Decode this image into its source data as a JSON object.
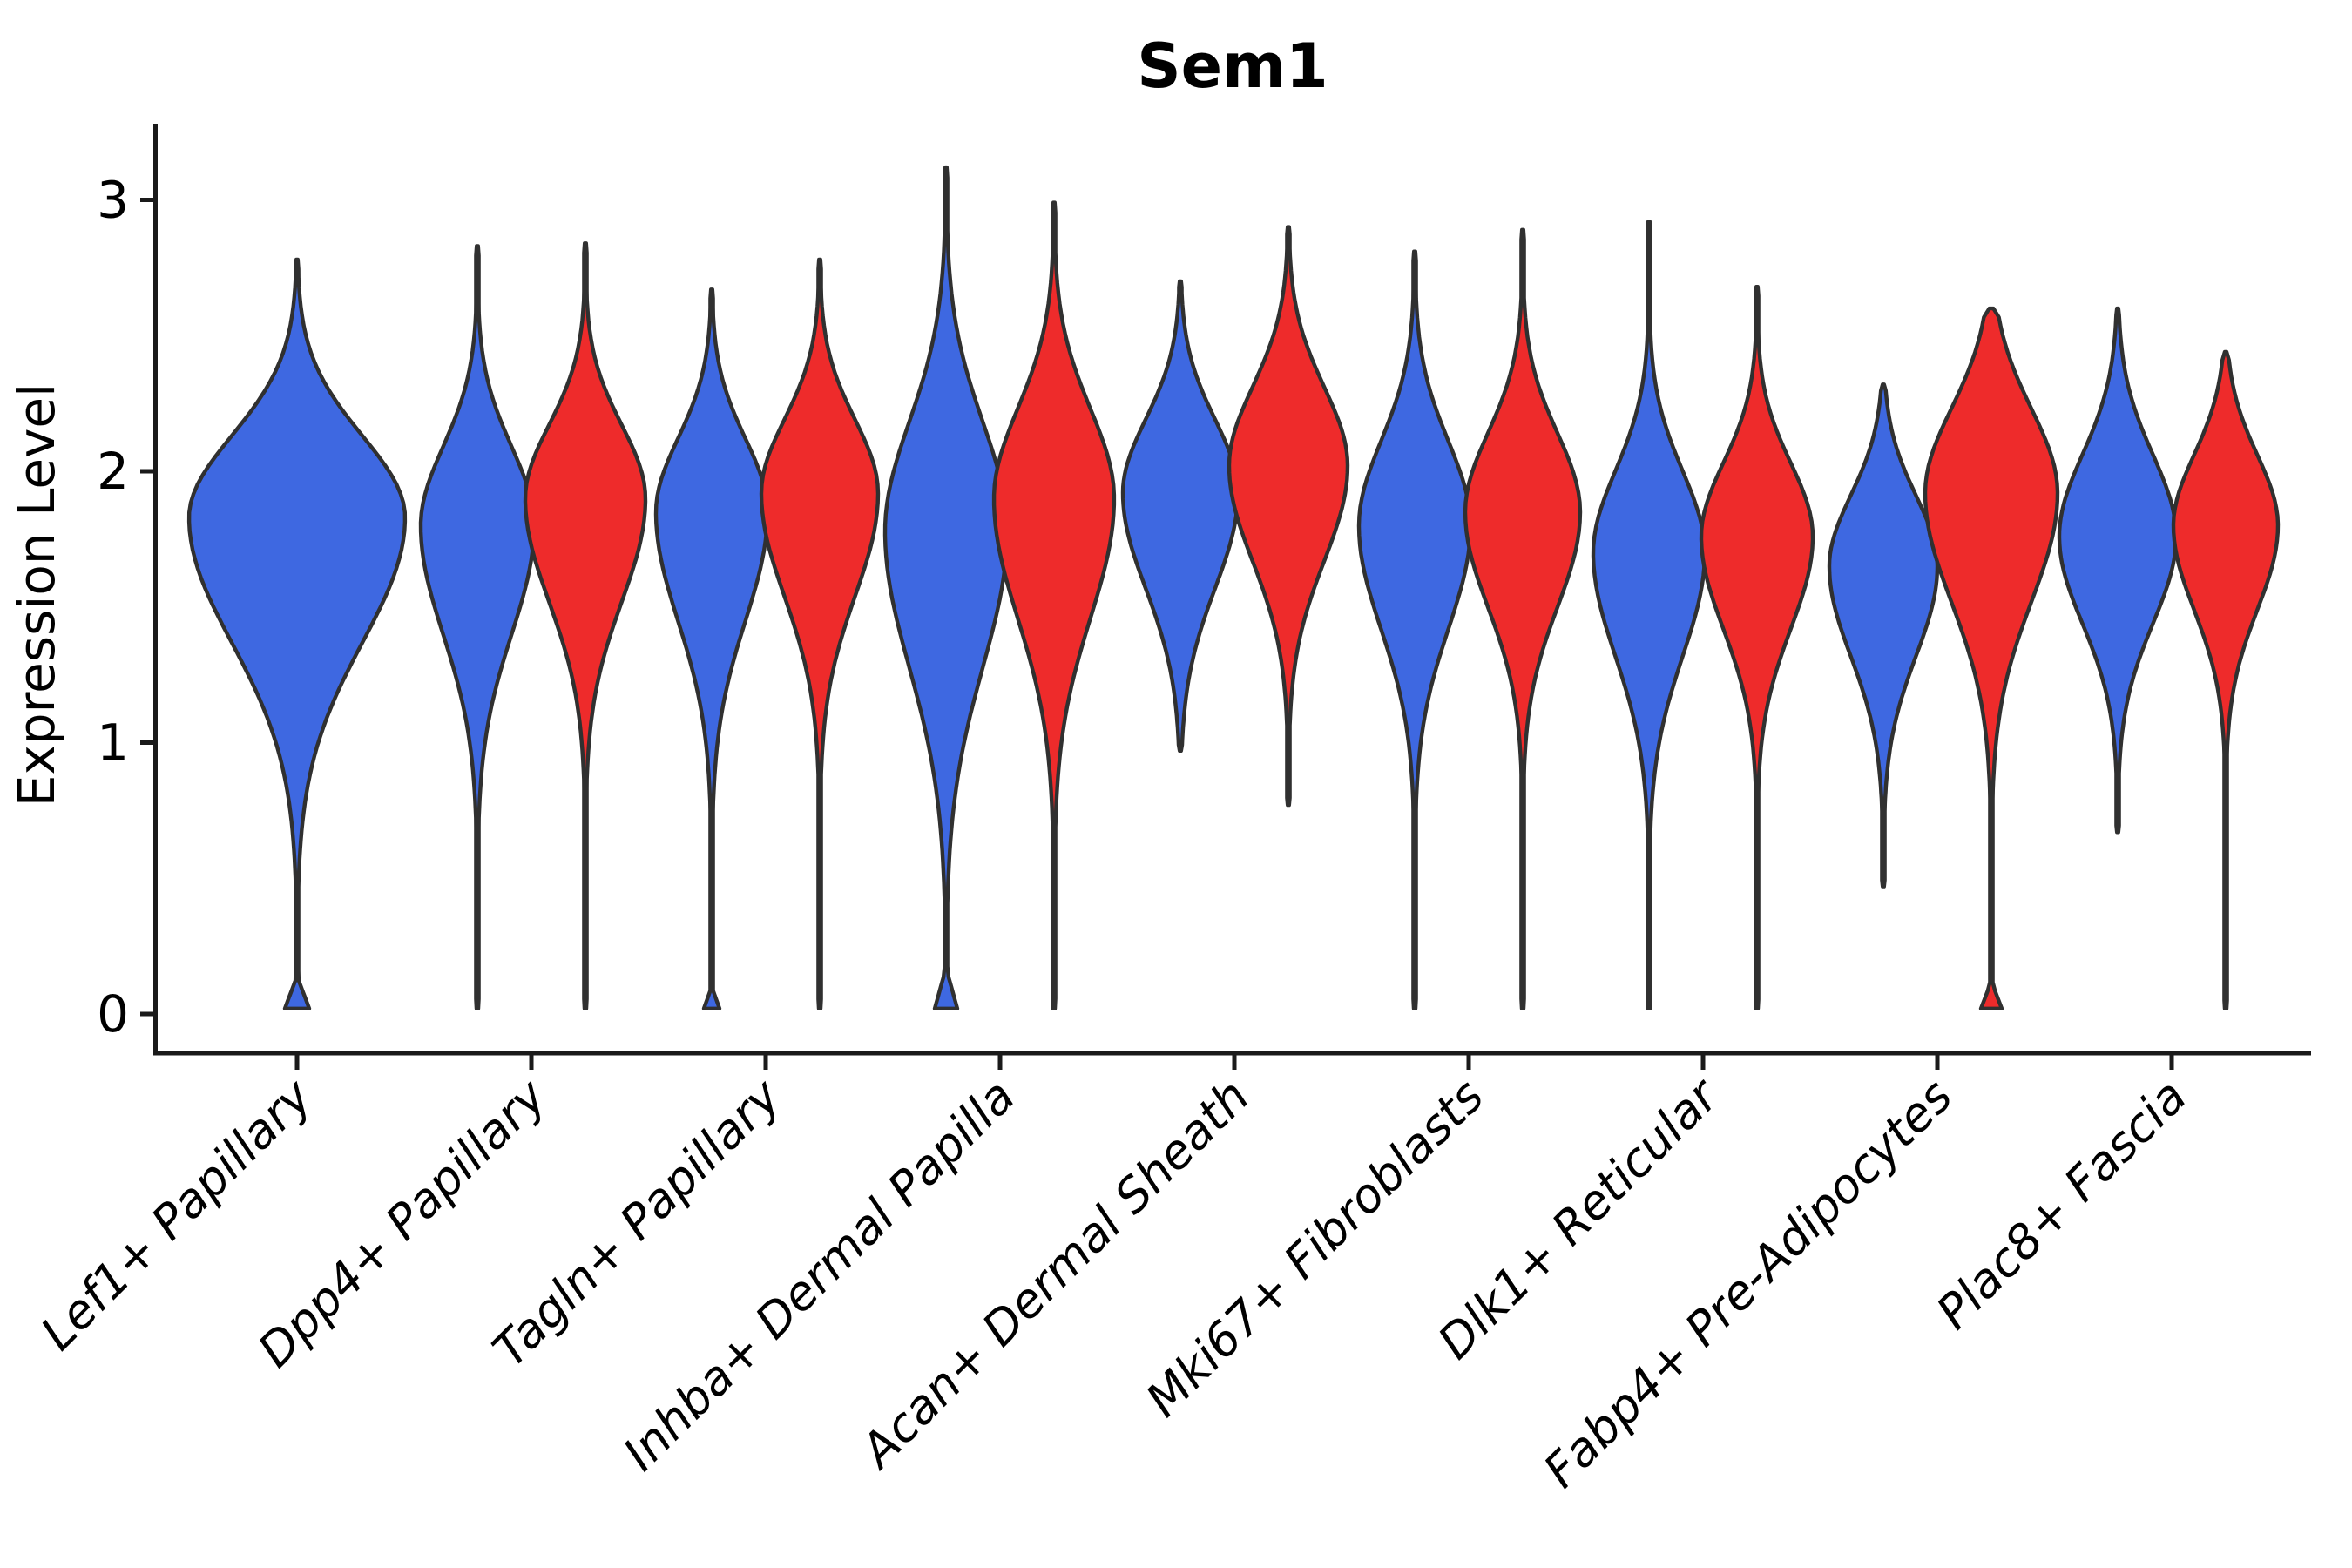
{
  "chart_data": {
    "type": "violin",
    "title": "Sem1",
    "ylabel": "Expression Level",
    "xlabel": "",
    "yticks": [
      0,
      1,
      2,
      3
    ],
    "ylim": [
      -0.15,
      3.3
    ],
    "grid": false,
    "legend": "none",
    "categories": [
      "Lef1+ Papillary",
      "Dpp4+ Papillary",
      "Tagln+ Papillary",
      "Inhba+ Dermal Papilla",
      "Acan+ Dermal Sheath",
      "Mki67+ Fibroblasts",
      "Dlk1+ Reticular",
      "Fabp4+ Pre-Adipocytes",
      "Plac8+ Fascia"
    ],
    "groups": {
      "blue": {
        "color": "#3E68E1"
      },
      "red": {
        "color": "#EE2B2B"
      }
    },
    "style": {
      "outline_color": "#303030",
      "axis_color": "#1a1a1a",
      "text_color": "#000000",
      "background": "#ffffff"
    },
    "violins": [
      {
        "category": 0,
        "group": "blue",
        "single": true,
        "min": 0.02,
        "max": 2.78,
        "peak": 1.83,
        "sigma_up": 0.3,
        "sigma_down": 0.46,
        "halfwidth": 124,
        "foot": {
          "halfwidth": 14,
          "height": 0.14
        }
      },
      {
        "category": 1,
        "group": "blue",
        "single": false,
        "min": 0.02,
        "max": 2.83,
        "peak": 1.8,
        "sigma_up": 0.29,
        "sigma_down": 0.4,
        "halfwidth": 65,
        "foot": null
      },
      {
        "category": 1,
        "group": "red",
        "single": false,
        "min": 0.02,
        "max": 2.84,
        "peak": 1.9,
        "sigma_up": 0.27,
        "sigma_down": 0.38,
        "halfwidth": 69,
        "foot": null
      },
      {
        "category": 2,
        "group": "blue",
        "single": false,
        "min": 0.02,
        "max": 2.67,
        "peak": 1.85,
        "sigma_up": 0.27,
        "sigma_down": 0.4,
        "halfwidth": 64,
        "foot": {
          "halfwidth": 9,
          "height": 0.1
        }
      },
      {
        "category": 2,
        "group": "red",
        "single": false,
        "min": 0.02,
        "max": 2.78,
        "peak": 1.92,
        "sigma_up": 0.27,
        "sigma_down": 0.38,
        "halfwidth": 67,
        "foot": null
      },
      {
        "category": 3,
        "group": "blue",
        "single": false,
        "min": 0.02,
        "max": 3.12,
        "peak": 1.78,
        "sigma_up": 0.4,
        "sigma_down": 0.5,
        "halfwidth": 70,
        "foot": {
          "halfwidth": 13,
          "height": 0.17
        }
      },
      {
        "category": 3,
        "group": "red",
        "single": false,
        "min": 0.02,
        "max": 2.99,
        "peak": 1.9,
        "sigma_up": 0.33,
        "sigma_down": 0.44,
        "halfwidth": 69,
        "foot": null
      },
      {
        "category": 4,
        "group": "blue",
        "single": false,
        "min": 0.97,
        "max": 2.7,
        "peak": 1.92,
        "sigma_up": 0.27,
        "sigma_down": 0.35,
        "halfwidth": 66,
        "foot": null
      },
      {
        "category": 4,
        "group": "red",
        "single": false,
        "min": 0.77,
        "max": 2.9,
        "peak": 2.02,
        "sigma_up": 0.29,
        "sigma_down": 0.35,
        "halfwidth": 68,
        "foot": null
      },
      {
        "category": 5,
        "group": "blue",
        "single": false,
        "min": 0.02,
        "max": 2.81,
        "peak": 1.8,
        "sigma_up": 0.31,
        "sigma_down": 0.38,
        "halfwidth": 64,
        "foot": null
      },
      {
        "category": 5,
        "group": "red",
        "single": false,
        "min": 0.02,
        "max": 2.89,
        "peak": 1.85,
        "sigma_up": 0.29,
        "sigma_down": 0.35,
        "halfwidth": 66,
        "foot": null
      },
      {
        "category": 6,
        "group": "blue",
        "single": false,
        "min": 0.02,
        "max": 2.92,
        "peak": 1.7,
        "sigma_up": 0.3,
        "sigma_down": 0.38,
        "halfwidth": 64,
        "foot": null
      },
      {
        "category": 6,
        "group": "red",
        "single": false,
        "min": 0.02,
        "max": 2.68,
        "peak": 1.76,
        "sigma_up": 0.27,
        "sigma_down": 0.34,
        "halfwidth": 64,
        "foot": null
      },
      {
        "category": 7,
        "group": "blue",
        "single": false,
        "min": 0.47,
        "max": 2.32,
        "peak": 1.65,
        "sigma_up": 0.26,
        "sigma_down": 0.33,
        "halfwidth": 62,
        "foot": null
      },
      {
        "category": 7,
        "group": "red",
        "single": false,
        "min": 0.02,
        "max": 2.6,
        "peak": 1.92,
        "sigma_up": 0.31,
        "sigma_down": 0.4,
        "halfwidth": 76,
        "foot": {
          "halfwidth": 12,
          "height": 0.12
        }
      },
      {
        "category": 8,
        "group": "blue",
        "single": false,
        "min": 0.67,
        "max": 2.6,
        "peak": 1.76,
        "sigma_up": 0.3,
        "sigma_down": 0.32,
        "halfwidth": 67,
        "foot": null
      },
      {
        "category": 8,
        "group": "red",
        "single": false,
        "min": 0.02,
        "max": 2.44,
        "peak": 1.8,
        "sigma_up": 0.26,
        "sigma_down": 0.31,
        "halfwidth": 60,
        "foot": null
      }
    ]
  }
}
